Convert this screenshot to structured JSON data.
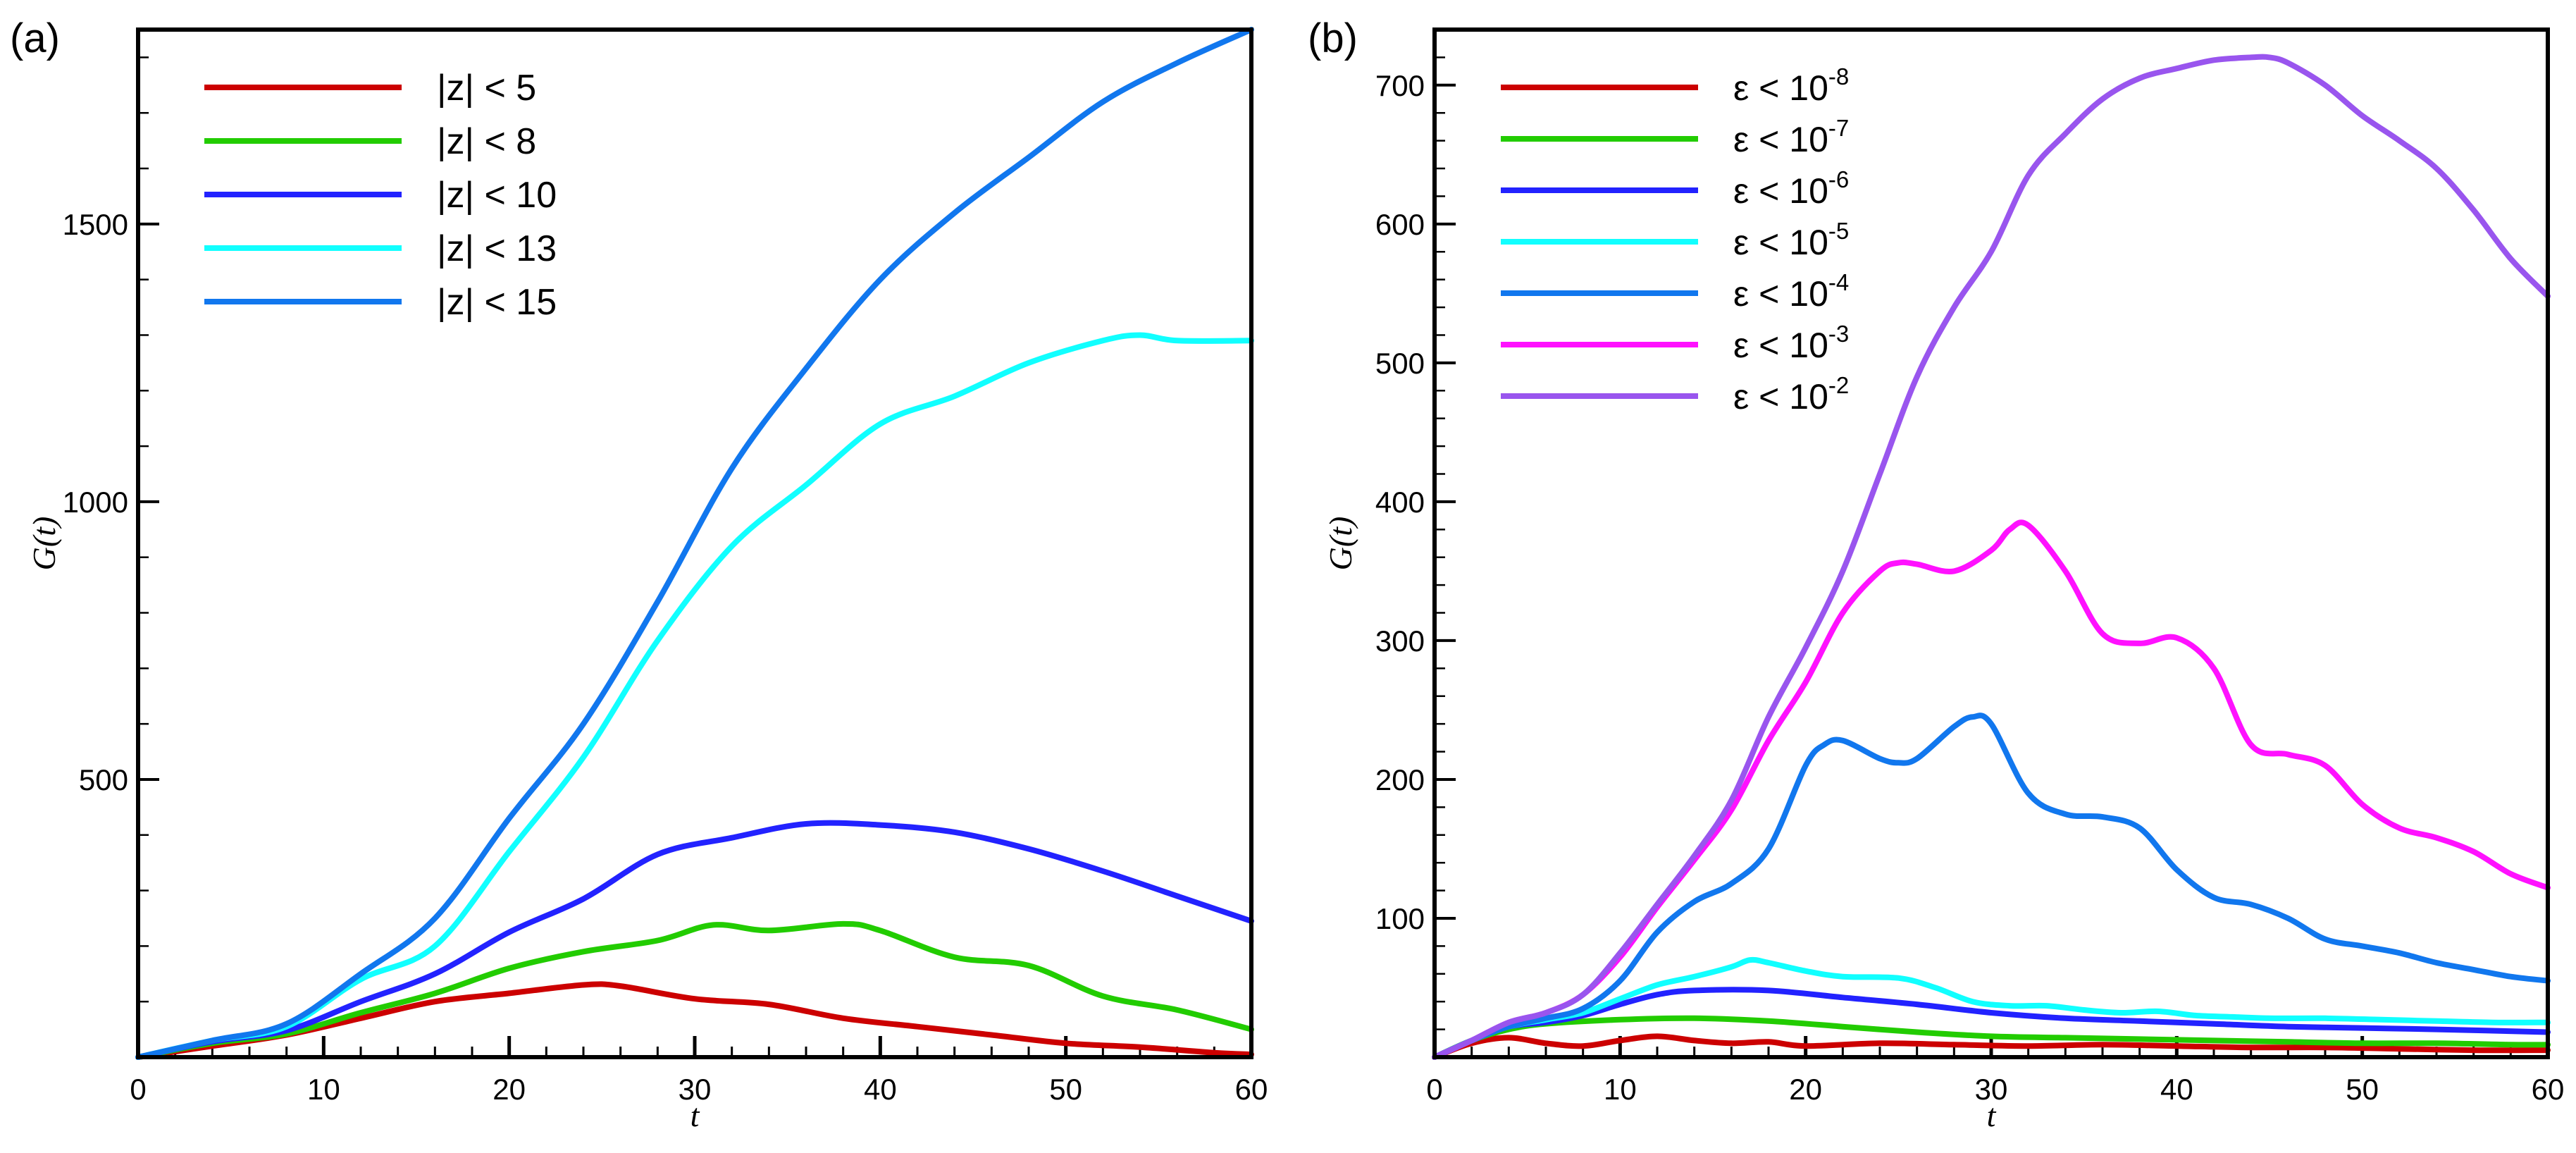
{
  "chart_data": [
    {
      "panel_label": "(a)",
      "type": "line",
      "xlabel": "t",
      "ylabel": "G(t)",
      "xlim": [
        0,
        60
      ],
      "ylim": [
        0,
        1850
      ],
      "x_ticks": [
        "0",
        "10",
        "20",
        "30",
        "40",
        "50",
        "60"
      ],
      "y_ticks": [
        "500",
        "1000",
        "1500"
      ],
      "y_tick_values": [
        500,
        1000,
        1500
      ],
      "legend_location": "top-left",
      "series": [
        {
          "name": "|z| < 5",
          "color": "#cc0000",
          "x": [
            0,
            4,
            8,
            12,
            16,
            20,
            24,
            26,
            30,
            34,
            38,
            42,
            46,
            50,
            54,
            58,
            60
          ],
          "y": [
            0,
            20,
            40,
            70,
            100,
            115,
            130,
            128,
            105,
            95,
            70,
            55,
            40,
            25,
            18,
            8,
            5
          ]
        },
        {
          "name": "|z| < 8",
          "color": "#22cc00",
          "x": [
            0,
            4,
            8,
            12,
            16,
            20,
            24,
            28,
            31,
            34,
            38,
            40,
            44,
            48,
            52,
            56,
            60
          ],
          "y": [
            0,
            25,
            42,
            80,
            115,
            160,
            190,
            210,
            238,
            228,
            240,
            228,
            180,
            165,
            110,
            85,
            50
          ]
        },
        {
          "name": "|z| < 10",
          "color": "#2222ff",
          "x": [
            0,
            4,
            8,
            12,
            16,
            20,
            24,
            28,
            32,
            36,
            40,
            44,
            48,
            52,
            56,
            60
          ],
          "y": [
            0,
            28,
            48,
            100,
            150,
            225,
            285,
            365,
            395,
            420,
            418,
            405,
            375,
            335,
            290,
            245
          ]
        },
        {
          "name": "|z| < 13",
          "color": "#11ffff",
          "x": [
            0,
            4,
            8,
            12,
            16,
            20,
            24,
            28,
            32,
            36,
            40,
            44,
            48,
            52,
            54,
            56,
            60
          ],
          "y": [
            0,
            30,
            55,
            140,
            200,
            370,
            540,
            750,
            920,
            1030,
            1140,
            1190,
            1250,
            1290,
            1300,
            1290,
            1290
          ]
        },
        {
          "name": "|z| < 15",
          "color": "#1177ee",
          "x": [
            0,
            4,
            8,
            12,
            16,
            20,
            24,
            28,
            32,
            36,
            40,
            44,
            48,
            52,
            56,
            60
          ],
          "y": [
            0,
            30,
            60,
            150,
            250,
            430,
            600,
            820,
            1060,
            1240,
            1400,
            1520,
            1620,
            1720,
            1790,
            1850
          ]
        }
      ]
    },
    {
      "panel_label": "(b)",
      "type": "line",
      "xlabel": "t",
      "ylabel": "G(t)",
      "xlim": [
        0,
        60
      ],
      "ylim": [
        0,
        740
      ],
      "x_ticks": [
        "0",
        "10",
        "20",
        "30",
        "40",
        "50",
        "60"
      ],
      "y_ticks": [
        "100",
        "200",
        "300",
        "400",
        "500",
        "600",
        "700"
      ],
      "y_tick_values": [
        100,
        200,
        300,
        400,
        500,
        600,
        700
      ],
      "legend_location": "top-left",
      "series": [
        {
          "name": "ε < 10",
          "sup": "-8",
          "color": "#cc0000",
          "x": [
            0,
            2,
            4,
            6,
            8,
            10,
            12,
            14,
            16,
            18,
            20,
            24,
            28,
            32,
            36,
            40,
            44,
            48,
            52,
            56,
            60
          ],
          "y": [
            0,
            10,
            14,
            10,
            8,
            12,
            15,
            12,
            10,
            11,
            8,
            10,
            9,
            8,
            9,
            8,
            7,
            7,
            6,
            5,
            5
          ]
        },
        {
          "name": "ε < 10",
          "sup": "-7",
          "color": "#22cc00",
          "x": [
            0,
            2,
            4,
            6,
            10,
            14,
            18,
            22,
            26,
            30,
            34,
            38,
            42,
            46,
            50,
            54,
            58,
            60
          ],
          "y": [
            0,
            12,
            20,
            24,
            27,
            28,
            26,
            22,
            18,
            15,
            14,
            13,
            12,
            11,
            10,
            10,
            9,
            9
          ]
        },
        {
          "name": "ε < 10",
          "sup": "-6",
          "color": "#2222ff",
          "x": [
            0,
            2,
            4,
            6,
            8,
            10,
            12,
            14,
            18,
            22,
            26,
            30,
            34,
            38,
            42,
            46,
            50,
            54,
            60
          ],
          "y": [
            0,
            12,
            22,
            25,
            30,
            38,
            45,
            48,
            48,
            43,
            38,
            32,
            28,
            26,
            24,
            22,
            21,
            20,
            18
          ]
        },
        {
          "name": "ε < 10",
          "sup": "-5",
          "color": "#11ffff",
          "x": [
            0,
            2,
            4,
            6,
            8,
            10,
            12,
            14,
            16,
            17,
            18,
            20,
            22,
            25,
            27,
            29,
            31,
            33,
            35,
            37,
            39,
            41,
            43,
            45,
            48,
            51,
            54,
            57,
            60
          ],
          "y": [
            0,
            12,
            22,
            27,
            32,
            42,
            52,
            58,
            65,
            70,
            68,
            62,
            58,
            57,
            50,
            40,
            37,
            37,
            34,
            32,
            33,
            30,
            29,
            28,
            28,
            27,
            26,
            25,
            25
          ]
        },
        {
          "name": "ε < 10",
          "sup": "-4",
          "color": "#1177ee",
          "x": [
            0,
            2,
            4,
            6,
            8,
            10,
            12,
            14,
            16,
            18,
            20,
            21,
            22,
            24,
            25,
            26,
            28,
            29,
            30,
            32,
            34,
            36,
            38,
            40,
            42,
            44,
            46,
            48,
            50,
            52,
            54,
            56,
            58,
            60
          ],
          "y": [
            0,
            12,
            22,
            28,
            35,
            55,
            90,
            112,
            125,
            150,
            210,
            225,
            228,
            215,
            212,
            215,
            238,
            245,
            240,
            190,
            175,
            173,
            165,
            135,
            115,
            110,
            100,
            85,
            80,
            75,
            68,
            63,
            58,
            55
          ]
        },
        {
          "name": "ε < 10",
          "sup": "-3",
          "color": "#ff11ff",
          "x": [
            0,
            2,
            4,
            6,
            8,
            10,
            12,
            14,
            16,
            18,
            20,
            22,
            24,
            25,
            26,
            28,
            30,
            31,
            32,
            34,
            36,
            38,
            40,
            42,
            44,
            46,
            48,
            50,
            52,
            54,
            56,
            58,
            60
          ],
          "y": [
            0,
            12,
            25,
            32,
            45,
            72,
            108,
            142,
            178,
            228,
            270,
            320,
            350,
            356,
            355,
            350,
            365,
            380,
            383,
            350,
            305,
            298,
            302,
            280,
            225,
            218,
            210,
            182,
            165,
            158,
            148,
            132,
            122
          ]
        },
        {
          "name": "ε < 10",
          "sup": "-2",
          "color": "#9955ee",
          "x": [
            0,
            2,
            4,
            6,
            8,
            10,
            12,
            14,
            16,
            18,
            20,
            22,
            24,
            26,
            28,
            30,
            32,
            34,
            36,
            38,
            40,
            42,
            44,
            45,
            46,
            48,
            50,
            52,
            54,
            56,
            58,
            60
          ],
          "y": [
            0,
            12,
            25,
            32,
            45,
            75,
            110,
            145,
            185,
            245,
            295,
            350,
            420,
            490,
            540,
            580,
            635,
            665,
            690,
            705,
            712,
            718,
            720,
            720,
            716,
            700,
            678,
            660,
            640,
            610,
            575,
            548
          ]
        }
      ]
    }
  ]
}
